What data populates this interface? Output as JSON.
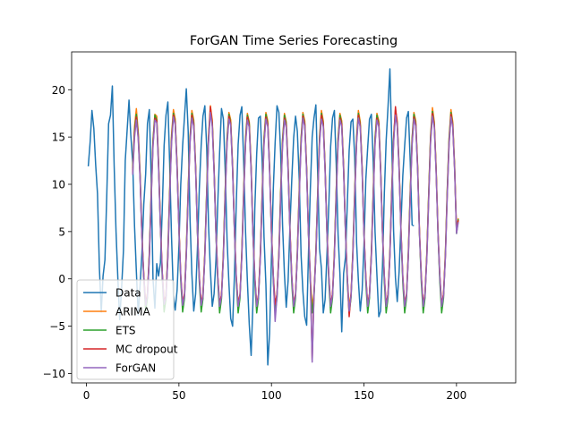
{
  "chart_data": {
    "type": "line",
    "title": "ForGAN Time Series Forecasting",
    "xlabel": "",
    "ylabel": "",
    "xlim": [
      -8,
      232
    ],
    "ylim": [
      -11,
      24
    ],
    "x_ticks": [
      0,
      50,
      100,
      150,
      200
    ],
    "y_ticks": [
      -10,
      -5,
      0,
      5,
      10,
      15,
      20
    ],
    "grid": false,
    "legend_position": "lower-left",
    "series": [
      {
        "name": "Data",
        "color": "#1f77b4",
        "x_start": 1,
        "values": [
          11.9,
          14.5,
          17.8,
          15.9,
          12.0,
          9.0,
          1.2,
          -3.5,
          0.3,
          2.0,
          9.0,
          16.4,
          17.3,
          20.4,
          12.0,
          5.0,
          -0.1,
          -4.3,
          -1.0,
          3.0,
          12.5,
          15.7,
          18.9,
          15.2,
          12.3,
          5.5,
          0.8,
          -3.8,
          -0.6,
          2.7,
          7.9,
          11.1,
          16.4,
          17.9,
          10.6,
          0.0,
          -3.1,
          1.6,
          0.3,
          1.7,
          7.5,
          14.1,
          17.3,
          18.7,
          12.2,
          4.4,
          -1.7,
          -3.3,
          -1.2,
          3.6,
          10.0,
          14.1,
          17.2,
          20.1,
          15.6,
          6.2,
          0.5,
          -3.4,
          -1.6,
          3.1,
          9.5,
          14.1,
          17.2,
          18.3,
          13.8,
          5.7,
          0.9,
          -2.9,
          -1.6,
          2.0,
          8.2,
          13.4,
          18.0,
          16.9,
          11.6,
          4.2,
          -0.5,
          -4.2,
          -5.0,
          0.5,
          8.0,
          14.2,
          17.3,
          18.2,
          12.3,
          4.9,
          -0.2,
          -4.8,
          -8.1,
          -2.6,
          7.4,
          13.2,
          17.0,
          17.2,
          12.2,
          4.4,
          -0.6,
          -9.1,
          -5.8,
          2.3,
          9.6,
          14.4,
          18.3,
          17.6,
          13.2,
          5.7,
          0.5,
          -3.0,
          -0.2,
          5.6,
          10.5,
          14.9,
          17.2,
          15.6,
          10.6,
          2.5,
          -1.3,
          -4.0,
          -4.9,
          2.5,
          9.4,
          15.0,
          17.0,
          18.4,
          10.9,
          3.2,
          1.1,
          -3.6,
          -2.2,
          2.6,
          7.9,
          14.0,
          17.0,
          17.8,
          12.2,
          4.7,
          0.5,
          -5.6,
          0.6,
          2.3,
          7.9,
          13.6,
          16.6,
          16.9,
          12.8,
          3.8,
          -0.2,
          -3.4,
          -1.2,
          3.5,
          10.5,
          13.9,
          16.9,
          17.4,
          12.3,
          5.0,
          0.4,
          -4.0,
          -3.4,
          1.3,
          9.1,
          14.6,
          18.2,
          22.2,
          14.8,
          5.1,
          0.1,
          -2.4,
          0.8,
          5.9,
          10.9,
          14.1,
          17.0,
          17.7,
          12.4,
          5.7
        ],
        "end_value": 5.6
      },
      {
        "name": "ARIMA",
        "color": "#ff7f0e",
        "x_start": 25,
        "values": [
          11.7,
          16.1,
          18.0,
          15.5,
          11.1,
          4.8,
          0.4,
          -2.9,
          -1.5,
          2.8,
          9.2,
          14.7,
          17.4,
          17.2,
          12.4,
          5.8,
          0.5,
          -2.7,
          -1.8,
          2.9,
          9.4,
          15.2,
          17.9,
          16.9,
          12.1,
          5.4,
          0.2,
          -2.9,
          -1.5,
          3.1,
          9.6,
          15.1,
          17.8,
          16.8,
          12.0,
          5.3,
          0.2,
          -2.8,
          -1.6,
          2.9,
          9.4,
          15.1,
          18.3,
          16.8,
          11.8,
          5.1,
          0.1,
          -2.8,
          -1.7,
          2.8,
          9.3,
          14.9,
          17.6,
          16.8,
          12.0,
          5.2,
          0.1,
          -2.9,
          -1.6,
          2.9,
          9.4,
          15.0,
          17.5,
          16.6,
          11.9,
          5.1,
          0.1,
          -2.9,
          -1.7,
          2.8,
          9.3,
          14.9,
          17.6,
          16.7,
          11.9,
          5.1,
          0.2,
          -2.9,
          -1.6,
          2.8,
          9.3,
          14.8,
          17.5,
          16.6,
          11.9,
          5.2,
          0.1,
          -2.9,
          -1.6,
          2.9,
          9.3,
          14.9,
          17.6,
          16.7,
          11.8,
          5.1,
          0.1,
          -2.9,
          -1.6,
          2.9,
          9.3,
          15.0,
          17.8,
          16.7,
          11.9,
          5.1,
          0.1,
          -2.9,
          -1.6,
          2.9,
          9.3,
          14.9,
          17.5,
          16.7,
          11.9,
          5.1,
          0.1,
          -2.9,
          -1.6,
          2.9,
          9.3,
          15.0,
          17.8,
          16.6,
          11.8,
          5.1,
          0.1,
          -2.9,
          -1.6,
          2.9,
          9.3,
          14.9,
          17.5,
          16.7,
          11.9,
          5.1,
          0.1,
          -2.9,
          -1.6,
          2.9,
          9.3,
          15.0,
          17.9,
          16.7,
          11.9,
          5.1,
          0.1,
          -2.9,
          -1.6,
          2.9,
          9.3,
          14.9,
          17.6,
          16.7,
          11.9,
          5.1,
          0.1,
          -2.9,
          -1.6,
          2.9,
          9.3,
          15.1,
          18.1,
          16.6,
          11.8,
          5.1,
          0.1,
          -2.9,
          -1.6,
          2.9,
          9.3,
          14.9,
          17.9,
          16.6,
          11.9,
          5.1
        ],
        "end_value": 6.4
      },
      {
        "name": "ETS",
        "color": "#2ca02c",
        "x_start": 25,
        "values": [
          11.5,
          15.8,
          17.4,
          15.3,
          10.9,
          4.5,
          0.0,
          -3.4,
          -2.0,
          2.6,
          9.1,
          14.6,
          17.3,
          16.8,
          12.2,
          5.4,
          0.0,
          -3.5,
          -2.1,
          2.7,
          9.2,
          14.9,
          17.5,
          16.6,
          11.9,
          5.1,
          -0.2,
          -3.5,
          -2.0,
          2.8,
          9.4,
          14.9,
          17.5,
          16.5,
          11.8,
          5.0,
          -0.3,
          -3.5,
          -2.1,
          2.7,
          9.3,
          14.9,
          17.8,
          16.5,
          11.6,
          4.8,
          -0.4,
          -3.6,
          -2.1,
          2.6,
          9.2,
          14.8,
          17.4,
          16.5,
          11.8,
          4.9,
          -0.3,
          -3.6,
          -2.0,
          2.7,
          9.3,
          14.8,
          17.3,
          16.4,
          11.7,
          4.8,
          -0.4,
          -3.6,
          -2.1,
          2.6,
          9.2,
          14.8,
          17.4,
          16.4,
          11.7,
          4.8,
          -0.3,
          -3.6,
          -2.0,
          2.6,
          9.2,
          14.7,
          17.3,
          16.4,
          11.7,
          4.9,
          -0.4,
          -3.6,
          -2.0,
          2.7,
          9.2,
          14.8,
          17.4,
          16.4,
          11.6,
          4.8,
          -0.4,
          -3.6,
          -2.0,
          2.7,
          9.2,
          14.8,
          17.5,
          16.4,
          11.7,
          4.8,
          -0.4,
          -3.6,
          -2.0,
          2.7,
          9.2,
          14.8,
          17.3,
          16.4,
          11.7,
          4.8,
          -0.4,
          -3.6,
          -2.0,
          2.7,
          9.2,
          14.8,
          17.5,
          16.3,
          11.6,
          4.8,
          -0.4,
          -3.6,
          -2.0,
          2.7,
          9.2,
          14.8,
          17.3,
          16.4,
          11.7,
          4.8,
          -0.4,
          -3.6,
          -2.0,
          2.7,
          9.2,
          14.8,
          17.6,
          16.4,
          11.7,
          4.8,
          -0.4,
          -3.6,
          -2.0,
          2.7,
          9.2,
          14.8,
          17.4,
          16.4,
          11.7,
          4.8,
          -0.4,
          -3.6,
          -2.0,
          2.7,
          9.2,
          14.9,
          17.7,
          16.3,
          11.6,
          4.8,
          -0.4,
          -3.6,
          -2.0,
          2.7,
          9.2,
          14.8,
          17.6,
          16.3,
          11.7,
          4.8
        ],
        "end_value": 6.3
      },
      {
        "name": "MC dropout",
        "color": "#d62728",
        "x_start": 25,
        "values": [
          11.2,
          15.4,
          17.1,
          15.0,
          10.7,
          4.6,
          0.3,
          -2.6,
          -1.6,
          2.4,
          8.7,
          14.2,
          17.0,
          16.7,
          12.0,
          5.6,
          0.6,
          -2.4,
          -1.8,
          2.4,
          8.8,
          14.6,
          17.3,
          16.5,
          11.8,
          5.3,
          0.4,
          -2.6,
          -1.6,
          2.6,
          9.0,
          14.6,
          17.3,
          16.3,
          11.7,
          5.2,
          0.3,
          -2.6,
          -1.7,
          2.5,
          8.9,
          14.7,
          18.2,
          16.4,
          11.5,
          5.0,
          0.2,
          -2.6,
          -1.7,
          2.4,
          8.8,
          14.4,
          17.2,
          16.4,
          11.7,
          5.1,
          0.3,
          -2.7,
          -1.6,
          2.5,
          8.9,
          14.5,
          17.1,
          16.2,
          11.6,
          5.0,
          0.3,
          -2.7,
          -1.7,
          2.4,
          8.8,
          14.4,
          17.1,
          16.3,
          11.6,
          5.0,
          0.3,
          -2.7,
          -1.6,
          2.4,
          8.8,
          14.3,
          17.0,
          16.2,
          11.6,
          5.1,
          0.3,
          -2.7,
          -1.6,
          2.5,
          8.8,
          14.4,
          17.2,
          16.3,
          11.5,
          5.0,
          0.3,
          -8.6,
          -1.6,
          2.5,
          8.8,
          14.5,
          17.3,
          16.3,
          11.6,
          5.0,
          0.3,
          -2.7,
          -1.6,
          2.5,
          8.8,
          14.4,
          17.0,
          16.3,
          11.6,
          5.0,
          0.3,
          -4.0,
          -1.6,
          2.5,
          8.8,
          14.5,
          17.3,
          16.2,
          11.5,
          5.0,
          0.3,
          -2.7,
          -1.6,
          2.5,
          8.8,
          14.4,
          17.0,
          16.3,
          11.6,
          5.0,
          0.3,
          -2.7,
          -1.6,
          2.5,
          8.8,
          14.5,
          18.2,
          16.3,
          11.6,
          5.0,
          0.3,
          -2.7,
          -1.6,
          2.5,
          8.8,
          14.4,
          17.1,
          16.3,
          11.6,
          5.0,
          0.3,
          -2.7,
          -1.6,
          2.5,
          8.8,
          14.6,
          17.5,
          16.2,
          11.5,
          5.0,
          0.3,
          -2.7,
          -1.6,
          2.5,
          8.8,
          14.4,
          17.4,
          16.2,
          11.6,
          5.0
        ],
        "end_value": 6.2
      },
      {
        "name": "ForGAN",
        "color": "#9467bd",
        "x_start": 25,
        "values": [
          11.0,
          15.0,
          16.8,
          14.8,
          10.5,
          4.4,
          0.2,
          -2.8,
          -1.8,
          2.2,
          8.5,
          14.0,
          16.8,
          16.5,
          11.8,
          5.4,
          0.4,
          -2.7,
          -2.0,
          2.2,
          8.6,
          14.3,
          17.1,
          16.3,
          11.6,
          5.1,
          0.2,
          -2.8,
          -1.8,
          2.4,
          8.8,
          14.4,
          17.0,
          16.1,
          11.5,
          5.0,
          0.1,
          -2.8,
          -1.9,
          2.3,
          8.7,
          14.4,
          17.6,
          16.1,
          11.3,
          4.8,
          0.0,
          -2.9,
          -1.9,
          2.2,
          8.6,
          14.2,
          16.9,
          16.2,
          11.5,
          4.9,
          0.1,
          -2.9,
          -1.8,
          2.3,
          8.7,
          14.3,
          16.8,
          16.0,
          11.4,
          4.8,
          0.1,
          -2.9,
          -1.9,
          2.2,
          8.6,
          14.2,
          16.9,
          16.1,
          11.4,
          4.8,
          0.1,
          -4.5,
          -1.8,
          2.2,
          8.6,
          14.1,
          16.8,
          16.0,
          11.4,
          4.9,
          0.1,
          -2.9,
          -1.8,
          2.3,
          8.6,
          14.2,
          17.0,
          16.1,
          11.3,
          4.8,
          0.1,
          -8.8,
          -1.8,
          2.3,
          8.6,
          14.3,
          16.9,
          16.1,
          11.4,
          4.8,
          0.1,
          -2.9,
          -1.8,
          2.3,
          8.6,
          14.2,
          16.8,
          16.1,
          11.4,
          4.8,
          0.1,
          -3.4,
          -1.8,
          2.3,
          8.6,
          14.3,
          17.0,
          16.0,
          11.3,
          4.8,
          0.1,
          -2.9,
          -1.8,
          2.3,
          8.6,
          14.2,
          16.8,
          16.1,
          11.4,
          4.8,
          0.1,
          -2.9,
          -1.8,
          2.3,
          8.6,
          14.3,
          17.3,
          16.1,
          11.4,
          4.8,
          0.1,
          -2.9,
          -1.8,
          2.3,
          8.6,
          14.2,
          16.9,
          16.1,
          11.4,
          4.8,
          0.1,
          -2.9,
          -1.8,
          2.3,
          8.6,
          14.4,
          17.2,
          16.0,
          11.3,
          4.8,
          0.1,
          -2.9,
          -1.8,
          2.3,
          8.6,
          14.2,
          17.1,
          16.0,
          11.4,
          4.8
        ],
        "end_value": 6.0
      }
    ]
  }
}
